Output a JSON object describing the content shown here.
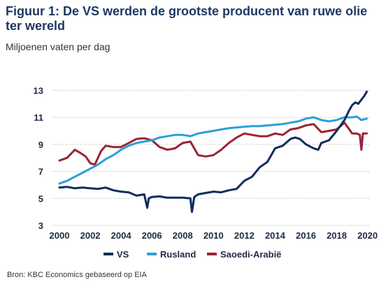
{
  "title": "Figuur 1: De VS werden de grootste producent van ruwe olie ter wereld",
  "subtitle": "Miljoenen vaten per dag",
  "source": "Bron: KBC Economics gebaseerd op EIA",
  "chart_data": {
    "type": "line",
    "title": "Figuur 1: De VS werden de grootste producent van ruwe olie ter wereld",
    "ylabel": "Miljoenen vaten per dag",
    "xlabel": "",
    "xlim": [
      1999.5,
      2020.2
    ],
    "ylim": [
      3,
      14
    ],
    "x_ticks": [
      2000,
      2002,
      2004,
      2006,
      2008,
      2010,
      2012,
      2014,
      2016,
      2018,
      2020
    ],
    "y_ticks": [
      3,
      5,
      7,
      9,
      11,
      13
    ],
    "grid": "horizontal",
    "legend_position": "bottom",
    "series": [
      {
        "name": "VS",
        "color": "#0f2d5c",
        "x": [
          2000,
          2000.5,
          2001,
          2001.5,
          2002,
          2002.5,
          2003,
          2003.5,
          2004,
          2004.5,
          2005,
          2005.5,
          2005.7,
          2005.8,
          2006,
          2006.5,
          2007,
          2007.5,
          2008,
          2008.5,
          2008.6,
          2008.75,
          2009,
          2009.5,
          2010,
          2010.5,
          2011,
          2011.5,
          2012,
          2012.5,
          2013,
          2013.5,
          2014,
          2014.5,
          2015,
          2015.3,
          2015.6,
          2016,
          2016.5,
          2016.8,
          2017,
          2017.5,
          2018,
          2018.5,
          2018.8,
          2019,
          2019.2,
          2019.4,
          2019.6,
          2019.8,
          2019.95
        ],
        "values": [
          5.8,
          5.85,
          5.75,
          5.8,
          5.75,
          5.7,
          5.8,
          5.6,
          5.5,
          5.45,
          5.2,
          5.3,
          4.3,
          5.0,
          5.1,
          5.15,
          5.05,
          5.05,
          5.05,
          5.0,
          4.0,
          5.1,
          5.3,
          5.4,
          5.5,
          5.45,
          5.6,
          5.7,
          6.3,
          6.6,
          7.3,
          7.7,
          8.7,
          8.9,
          9.4,
          9.5,
          9.4,
          9.0,
          8.7,
          8.6,
          9.1,
          9.3,
          10.0,
          10.8,
          11.5,
          11.9,
          12.1,
          12.0,
          12.3,
          12.6,
          12.9
        ]
      },
      {
        "name": "Rusland",
        "color": "#2b9fd8",
        "x": [
          2000,
          2000.5,
          2001,
          2001.5,
          2002,
          2002.5,
          2003,
          2003.5,
          2004,
          2004.5,
          2005,
          2005.5,
          2006,
          2006.5,
          2007,
          2007.5,
          2008,
          2008.5,
          2009,
          2009.5,
          2010,
          2010.5,
          2011,
          2011.5,
          2012,
          2012.5,
          2013,
          2013.5,
          2014,
          2014.5,
          2015,
          2015.5,
          2016,
          2016.5,
          2017,
          2017.5,
          2018,
          2018.5,
          2019,
          2019.3,
          2019.6,
          2019.95
        ],
        "values": [
          6.1,
          6.3,
          6.6,
          6.9,
          7.2,
          7.5,
          7.9,
          8.2,
          8.6,
          8.9,
          9.1,
          9.2,
          9.3,
          9.5,
          9.6,
          9.7,
          9.7,
          9.6,
          9.8,
          9.9,
          10.0,
          10.1,
          10.2,
          10.25,
          10.3,
          10.35,
          10.35,
          10.4,
          10.45,
          10.5,
          10.6,
          10.7,
          10.9,
          11.0,
          10.8,
          10.7,
          10.8,
          11.0,
          11.0,
          11.05,
          10.8,
          10.9
        ]
      },
      {
        "name": "Saoedi-Arabië",
        "color": "#9b2335",
        "x": [
          2000,
          2000.5,
          2001,
          2001.3,
          2001.7,
          2002,
          2002.3,
          2002.7,
          2003,
          2003.5,
          2004,
          2004.5,
          2005,
          2005.5,
          2006,
          2006.5,
          2007,
          2007.5,
          2008,
          2008.5,
          2009,
          2009.5,
          2010,
          2010.5,
          2011,
          2011.5,
          2012,
          2012.5,
          2013,
          2013.5,
          2014,
          2014.5,
          2015,
          2015.5,
          2016,
          2016.5,
          2017,
          2017.5,
          2018,
          2018.5,
          2019,
          2019.3,
          2019.5,
          2019.6,
          2019.7,
          2019.95
        ],
        "values": [
          7.8,
          8.0,
          8.6,
          8.4,
          8.1,
          7.6,
          7.5,
          8.5,
          8.9,
          8.8,
          8.8,
          9.1,
          9.4,
          9.45,
          9.3,
          8.8,
          8.6,
          8.7,
          9.1,
          9.2,
          8.2,
          8.1,
          8.2,
          8.6,
          9.1,
          9.5,
          9.8,
          9.7,
          9.6,
          9.6,
          9.8,
          9.7,
          10.1,
          10.2,
          10.4,
          10.5,
          9.9,
          10.0,
          10.1,
          10.6,
          9.8,
          9.8,
          9.7,
          8.6,
          9.8,
          9.8
        ]
      }
    ]
  }
}
